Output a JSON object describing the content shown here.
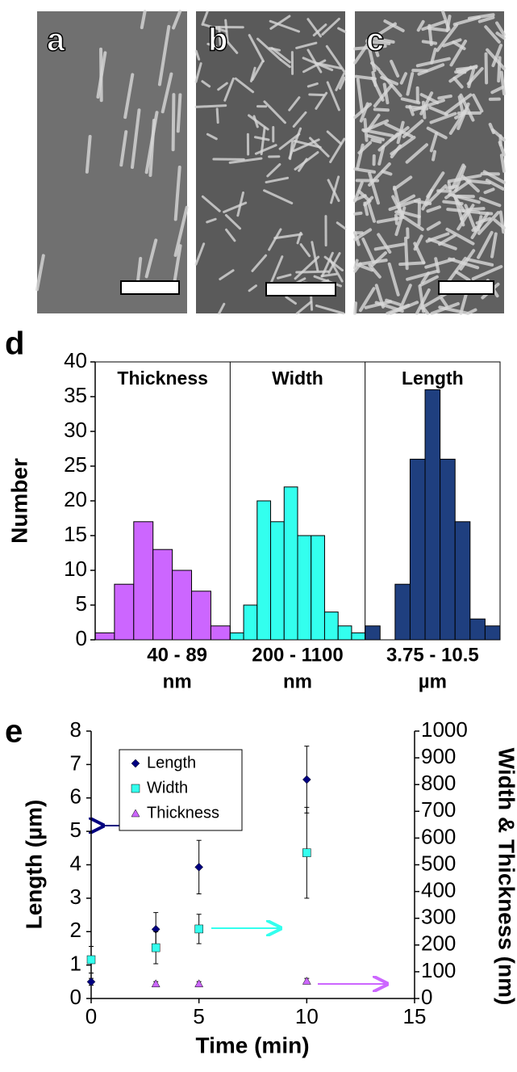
{
  "panels": [
    {
      "label": "a"
    },
    {
      "label": "b"
    },
    {
      "label": "c"
    }
  ],
  "chart_data": [
    {
      "type": "bar",
      "panel_label": "d",
      "y_label": "Number",
      "ylim": [
        0,
        40
      ],
      "yticks": [
        0,
        5,
        10,
        15,
        20,
        25,
        30,
        35,
        40
      ],
      "series": [
        {
          "name": "Thickness",
          "color": "#cc66ff",
          "values": [
            1,
            8,
            17,
            13,
            10,
            7,
            2
          ],
          "range_label": "40 - 89",
          "unit": "nm"
        },
        {
          "name": "Width",
          "color": "#33ffee",
          "values": [
            1,
            5,
            20,
            17,
            22,
            15,
            15,
            4,
            2,
            1
          ],
          "range_label": "200 - 1100",
          "unit": "nm"
        },
        {
          "name": "Length",
          "color": "#1f3f7f",
          "values": [
            2,
            0,
            8,
            26,
            36,
            26,
            17,
            3,
            2
          ],
          "range_label": "3.75 - 10.5",
          "unit": "µm"
        }
      ]
    },
    {
      "type": "scatter",
      "panel_label": "e",
      "x_label": "Time (min)",
      "y_label": "Length (µm)",
      "y2_label": "Width & Thickness (nm)",
      "xlim": [
        0,
        15
      ],
      "xticks": [
        0,
        5,
        10,
        15
      ],
      "ylim": [
        0,
        8
      ],
      "yticks": [
        0,
        1,
        2,
        3,
        4,
        5,
        6,
        7,
        8
      ],
      "y2lim": [
        0,
        1000
      ],
      "y2ticks": [
        0,
        100,
        200,
        300,
        400,
        500,
        600,
        700,
        800,
        900,
        1000
      ],
      "series": [
        {
          "name": "Length",
          "color": "#000080",
          "marker": "diamond",
          "x": [
            0,
            3,
            5,
            10
          ],
          "values": [
            0.5,
            2.07,
            3.93,
            6.55
          ],
          "errors": [
            0.1,
            0.5,
            0.8,
            1.0
          ]
        },
        {
          "name": "Width",
          "color": "#33ffee",
          "marker": "square",
          "axis": "y2",
          "x": [
            0,
            3,
            5,
            10
          ],
          "values": [
            145,
            190,
            260,
            545
          ],
          "errors": [
            50,
            60,
            55,
            170
          ]
        },
        {
          "name": "Thickness",
          "color": "#cc66ff",
          "marker": "triangle",
          "axis": "y2",
          "x": [
            3,
            5,
            10
          ],
          "values": [
            55,
            55,
            65
          ],
          "errors": [
            8,
            8,
            10
          ]
        }
      ]
    }
  ]
}
